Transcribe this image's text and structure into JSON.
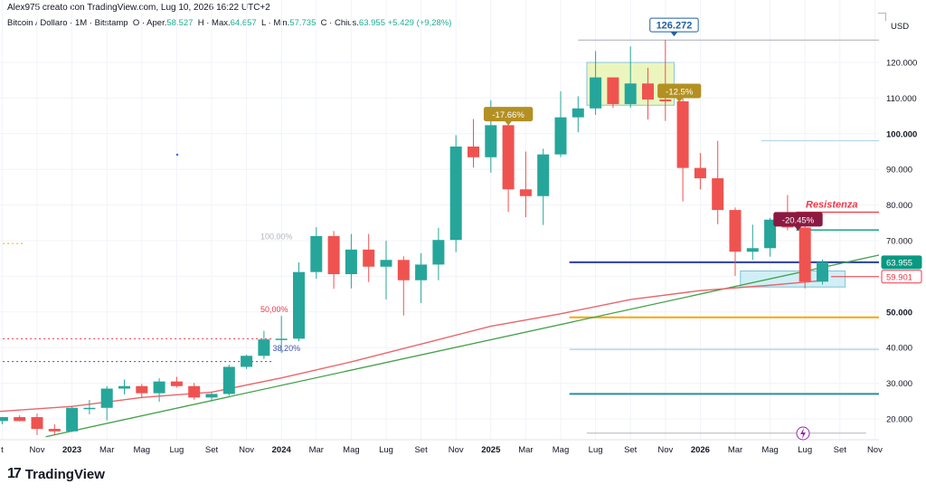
{
  "header": {
    "author": "Alex975 creato con TradingView.com, Lug 10, 2026 16:22 UTC+2",
    "symbol": "Bitcoin / Dollaro · 1M · Bitstamp",
    "open_label": "O",
    "open_key": "Aper.",
    "open_value": "58.527",
    "high_label": "H",
    "high_key": "Max.",
    "high_value": "64.657",
    "low_label": "L",
    "low_key": "Min.",
    "low_value": "57.735",
    "close_label": "C",
    "close_key": "Chius.",
    "close_value": "63.955",
    "change_value": "+5.429 (+9,28%)"
  },
  "brand": {
    "name": "TradingView",
    "mark": "17"
  },
  "chart_data": {
    "type": "candlestick",
    "currency": "USD",
    "ylim": [
      14,
      132
    ],
    "y_ticks": [
      20,
      30,
      40,
      50,
      60,
      70,
      80,
      90,
      100,
      110,
      120
    ],
    "y_tick_labels": [
      "20.000",
      "30.000",
      "40.000",
      "50.000",
      "60.000",
      "70.000",
      "80.000",
      "90.000",
      "100.000",
      "110.000",
      "120.000"
    ],
    "x_ticks": [
      {
        "t": -2,
        "label": "t"
      },
      {
        "t": 0,
        "label": "Nov"
      },
      {
        "t": 2,
        "label": "2023"
      },
      {
        "t": 4,
        "label": "Mar"
      },
      {
        "t": 6,
        "label": "Mag"
      },
      {
        "t": 8,
        "label": "Lug"
      },
      {
        "t": 10,
        "label": "Set"
      },
      {
        "t": 12,
        "label": "Nov"
      },
      {
        "t": 14,
        "label": "2024"
      },
      {
        "t": 16,
        "label": "Mar"
      },
      {
        "t": 18,
        "label": "Mag"
      },
      {
        "t": 20,
        "label": "Lug"
      },
      {
        "t": 22,
        "label": "Set"
      },
      {
        "t": 24,
        "label": "Nov"
      },
      {
        "t": 26,
        "label": "2025"
      },
      {
        "t": 28,
        "label": "Mar"
      },
      {
        "t": 30,
        "label": "Mag"
      },
      {
        "t": 32,
        "label": "Lug"
      },
      {
        "t": 34,
        "label": "Set"
      },
      {
        "t": 36,
        "label": "Nov"
      },
      {
        "t": 38,
        "label": "2026"
      },
      {
        "t": 40,
        "label": "Mar"
      },
      {
        "t": 42,
        "label": "Mag"
      },
      {
        "t": 44,
        "label": "Lug"
      },
      {
        "t": 46,
        "label": "Set"
      },
      {
        "t": 48,
        "label": "Nov"
      }
    ],
    "bold_x_ticks": [
      "2023",
      "2024",
      "2025",
      "2026"
    ],
    "candles": [
      {
        "t": -2,
        "o": 19.4,
        "h": 20.5,
        "l": 18.5,
        "c": 20.5
      },
      {
        "t": -1,
        "o": 20.5,
        "h": 21.0,
        "l": 19.3,
        "c": 19.4
      },
      {
        "t": 0,
        "o": 20.5,
        "h": 21.5,
        "l": 15.5,
        "c": 17.2
      },
      {
        "t": 1,
        "o": 17.2,
        "h": 18.5,
        "l": 15.5,
        "c": 16.5
      },
      {
        "t": 2,
        "o": 16.5,
        "h": 23.5,
        "l": 16.3,
        "c": 23.1
      },
      {
        "t": 3,
        "o": 23.1,
        "h": 25.3,
        "l": 21.3,
        "c": 23.1
      },
      {
        "t": 4,
        "o": 23.1,
        "h": 29.2,
        "l": 19.6,
        "c": 28.5
      },
      {
        "t": 5,
        "o": 28.5,
        "h": 31.0,
        "l": 26.9,
        "c": 29.2
      },
      {
        "t": 6,
        "o": 29.2,
        "h": 29.8,
        "l": 25.8,
        "c": 27.2
      },
      {
        "t": 7,
        "o": 27.2,
        "h": 31.4,
        "l": 24.8,
        "c": 30.5
      },
      {
        "t": 8,
        "o": 30.5,
        "h": 31.8,
        "l": 28.8,
        "c": 29.2
      },
      {
        "t": 9,
        "o": 29.2,
        "h": 30.1,
        "l": 25.4,
        "c": 26.0
      },
      {
        "t": 10,
        "o": 26.0,
        "h": 27.5,
        "l": 24.9,
        "c": 27.0
      },
      {
        "t": 11,
        "o": 27.0,
        "h": 35.2,
        "l": 26.5,
        "c": 34.6
      },
      {
        "t": 12,
        "o": 34.6,
        "h": 38.0,
        "l": 34.0,
        "c": 37.7
      },
      {
        "t": 13,
        "o": 37.7,
        "h": 44.7,
        "l": 36.8,
        "c": 42.3
      },
      {
        "t": 14,
        "o": 42.3,
        "h": 48.9,
        "l": 38.5,
        "c": 42.5
      },
      {
        "t": 15,
        "o": 42.5,
        "h": 63.9,
        "l": 41.8,
        "c": 61.2
      },
      {
        "t": 16,
        "o": 61.2,
        "h": 73.8,
        "l": 59.3,
        "c": 71.3
      },
      {
        "t": 17,
        "o": 71.3,
        "h": 72.7,
        "l": 56.5,
        "c": 60.6
      },
      {
        "t": 18,
        "o": 60.6,
        "h": 71.9,
        "l": 56.6,
        "c": 67.5
      },
      {
        "t": 19,
        "o": 67.5,
        "h": 71.9,
        "l": 58.4,
        "c": 62.7
      },
      {
        "t": 20,
        "o": 62.7,
        "h": 70.0,
        "l": 53.5,
        "c": 64.6
      },
      {
        "t": 21,
        "o": 64.6,
        "h": 65.6,
        "l": 49.0,
        "c": 58.9
      },
      {
        "t": 22,
        "o": 58.9,
        "h": 66.5,
        "l": 52.5,
        "c": 63.3
      },
      {
        "t": 23,
        "o": 63.3,
        "h": 73.6,
        "l": 58.9,
        "c": 70.2
      },
      {
        "t": 24,
        "o": 70.2,
        "h": 99.6,
        "l": 66.8,
        "c": 96.4
      },
      {
        "t": 25,
        "o": 96.4,
        "h": 104.1,
        "l": 90.5,
        "c": 93.4
      },
      {
        "t": 26,
        "o": 93.4,
        "h": 109.4,
        "l": 89.1,
        "c": 102.4
      },
      {
        "t": 27,
        "o": 102.4,
        "h": 102.6,
        "l": 78.1,
        "c": 84.4
      },
      {
        "t": 28,
        "o": 84.4,
        "h": 95.0,
        "l": 76.6,
        "c": 82.5
      },
      {
        "t": 29,
        "o": 82.5,
        "h": 95.8,
        "l": 74.4,
        "c": 94.2
      },
      {
        "t": 30,
        "o": 94.2,
        "h": 111.9,
        "l": 93.4,
        "c": 104.6
      },
      {
        "t": 31,
        "o": 104.6,
        "h": 110.5,
        "l": 100.4,
        "c": 107.1
      },
      {
        "t": 32,
        "o": 107.1,
        "h": 123.2,
        "l": 105.3,
        "c": 115.8
      },
      {
        "t": 33,
        "o": 115.8,
        "h": 115.8,
        "l": 107.3,
        "c": 108.3
      },
      {
        "t": 34,
        "o": 108.3,
        "h": 124.5,
        "l": 107.3,
        "c": 114.1
      },
      {
        "t": 35,
        "o": 114.1,
        "h": 118.5,
        "l": 104.0,
        "c": 109.6
      },
      {
        "t": 36,
        "o": 109.6,
        "h": 126.3,
        "l": 103.6,
        "c": 109.1
      },
      {
        "t": 37,
        "o": 109.1,
        "h": 111.0,
        "l": 81.0,
        "c": 90.4
      },
      {
        "t": 38,
        "o": 90.4,
        "h": 94.6,
        "l": 84.4,
        "c": 87.5
      },
      {
        "t": 39,
        "o": 87.5,
        "h": 98.0,
        "l": 74.6,
        "c": 78.6
      },
      {
        "t": 40,
        "o": 78.6,
        "h": 79.3,
        "l": 60.1,
        "c": 66.9
      },
      {
        "t": 41,
        "o": 66.9,
        "h": 74.5,
        "l": 64.6,
        "c": 67.9
      },
      {
        "t": 42,
        "o": 67.9,
        "h": 76.4,
        "l": 65.5,
        "c": 75.9
      },
      {
        "t": 43,
        "o": 75.9,
        "h": 82.8,
        "l": 72.9,
        "c": 73.7
      },
      {
        "t": 44,
        "o": 73.7,
        "h": 74.1,
        "l": 56.6,
        "c": 58.5
      },
      {
        "t": 45,
        "o": 58.5,
        "h": 64.7,
        "l": 57.7,
        "c": 63.96
      }
    ],
    "moving_average": [
      {
        "t": -3,
        "v": 21.8
      },
      {
        "t": 2,
        "v": 23.5
      },
      {
        "t": 6,
        "v": 26.0
      },
      {
        "t": 10,
        "v": 27.5
      },
      {
        "t": 14,
        "v": 31.5
      },
      {
        "t": 18,
        "v": 36.0
      },
      {
        "t": 22,
        "v": 41.0
      },
      {
        "t": 26,
        "v": 46.0
      },
      {
        "t": 30,
        "v": 49.5
      },
      {
        "t": 34,
        "v": 53.5
      },
      {
        "t": 38,
        "v": 56.0
      },
      {
        "t": 42,
        "v": 57.5
      },
      {
        "t": 45,
        "v": 58.8
      }
    ],
    "trendline": {
      "t1": 0.5,
      "v1": 15.0,
      "t2": 49.5,
      "v2": 67.3
    },
    "horizontal_levels": [
      {
        "value": 126.272,
        "label": "126.272",
        "color": "#b2b5be",
        "width": 1.2,
        "t_start": 31
      },
      {
        "value": 98.0,
        "label": "",
        "color": "#a5d3e3",
        "width": 1,
        "t_start": 41.5
      },
      {
        "value": 78.0,
        "label": "Resistenza",
        "color": "#f23645",
        "width": 1.3,
        "t_start": 43.5
      },
      {
        "value": 73.0,
        "label": "",
        "color": "#089981",
        "width": 1.3,
        "t_start": 43.5
      },
      {
        "value": 63.955,
        "label": "63.955",
        "color": "#2a3fa0",
        "width": 2,
        "t_start": 30.5
      },
      {
        "value": 59.901,
        "label": "59.901",
        "color": "#f23645",
        "width": 1,
        "t_start": 45.5
      },
      {
        "value": 48.5,
        "label": "",
        "color": "#f7a600",
        "width": 2,
        "t_start": 30.5
      },
      {
        "value": 39.5,
        "label": "",
        "color": "#8cc3dc",
        "width": 1,
        "t_start": 30.5
      },
      {
        "value": 27.0,
        "label": "",
        "color": "#2a8fa0",
        "width": 2,
        "t_start": 30.5
      },
      {
        "value": 42.5,
        "label": "",
        "color": "#f23645",
        "width": 1,
        "dashed": true,
        "t_start": -3,
        "t_end": 13.5
      },
      {
        "value": 36.1,
        "label": "",
        "color": "#3f51b5",
        "width": 1,
        "dashed": true,
        "t_start": -3,
        "t_end": 13.5
      },
      {
        "value": 69.2,
        "label": "",
        "color": "#f7a600",
        "width": 1,
        "dashed": true,
        "t_start": -3,
        "t_end": -0.8
      },
      {
        "value": 16.0,
        "label": "",
        "color": "#b2b5be",
        "width": 1,
        "t_start": 31.5,
        "t_end": 47.5
      }
    ],
    "fib_labels": [
      {
        "t": 12.8,
        "value": 70.4,
        "label": "100.00%",
        "color": "#b2b5be"
      },
      {
        "t": 12.8,
        "value": 50.0,
        "label": "50,00%",
        "color": "#f23645"
      },
      {
        "t": 13.5,
        "value": 39.0,
        "label": "38,20%",
        "color": "#3f51b5"
      }
    ],
    "callouts": [
      {
        "t": 27,
        "value": 105.5,
        "label": "-17.66%",
        "bg": "#b39022",
        "fg": "#ffffff"
      },
      {
        "t": 36.8,
        "value": 112.0,
        "label": "-12.5%",
        "bg": "#b39022",
        "fg": "#ffffff"
      },
      {
        "t": 43.6,
        "value": 76.0,
        "label": "-20.45%",
        "bg": "#8a1a42",
        "fg": "#ffffff"
      },
      {
        "t": 36.5,
        "value": 130.5,
        "label": "126.272",
        "bg": "#ffffff",
        "fg": "#1f5fa6",
        "border": "#1f5fa6"
      }
    ],
    "boxes": [
      {
        "t1": 31.5,
        "t2": 36.5,
        "v1": 108.0,
        "v2": 120.0,
        "fill": "#e8f5b3",
        "stroke": "#8bc4e0"
      },
      {
        "t1": 40.3,
        "t2": 46.3,
        "v1": 57.0,
        "v2": 61.5,
        "fill": "#c8ecf4",
        "stroke": "#7fc3d6"
      }
    ]
  }
}
